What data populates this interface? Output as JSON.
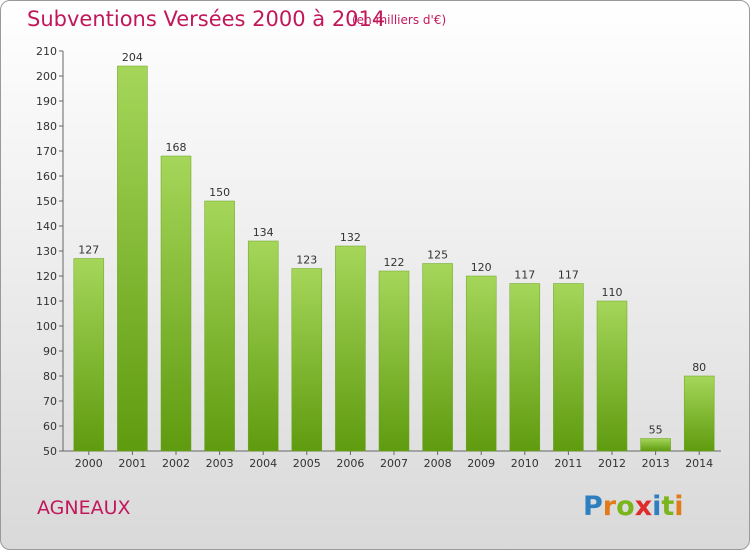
{
  "title": "Subventions Versées 2000 à 2014",
  "subtitle": "(en milliers d'€)",
  "commune": "AGNEAUX",
  "logo": {
    "text": "Proxiti",
    "letter_colors": [
      "#2e7fc0",
      "#e07b1a",
      "#7ab51d",
      "#e02b2b",
      "#2e7fc0",
      "#7ab51d",
      "#e07b1a"
    ]
  },
  "colors": {
    "accent": "#c2185b",
    "bar_top": "#a5d65a",
    "bar_bottom": "#5f9b0f"
  },
  "chart_data": {
    "type": "bar",
    "categories": [
      "2000",
      "2001",
      "2002",
      "2003",
      "2004",
      "2005",
      "2006",
      "2007",
      "2008",
      "2009",
      "2010",
      "2011",
      "2012",
      "2013",
      "2014"
    ],
    "values": [
      127,
      204,
      168,
      150,
      134,
      123,
      132,
      122,
      125,
      120,
      117,
      117,
      110,
      55,
      80
    ],
    "title": "Subventions Versées 2000 à 2014",
    "ylim": [
      50,
      210
    ],
    "yticks": [
      50,
      60,
      70,
      80,
      90,
      100,
      110,
      120,
      130,
      140,
      150,
      160,
      170,
      180,
      190,
      200,
      210
    ],
    "grid": false,
    "legend": "none"
  }
}
